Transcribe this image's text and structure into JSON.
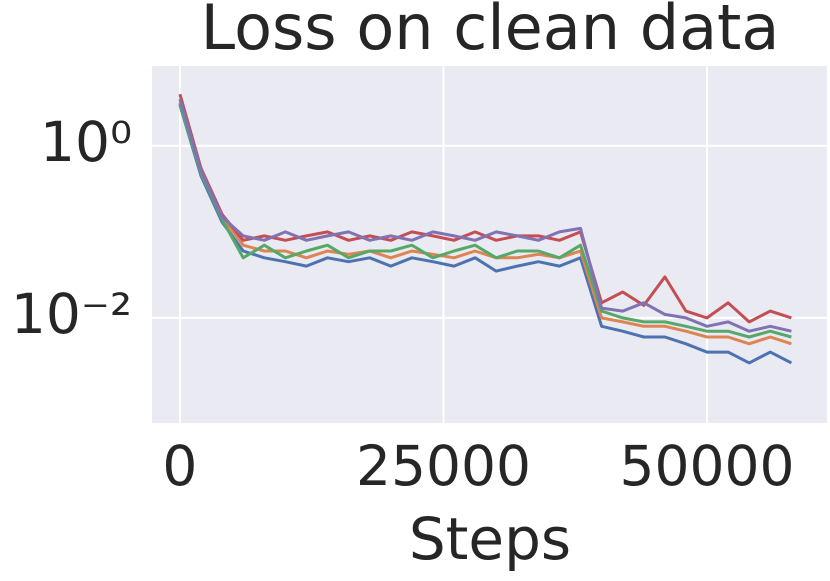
{
  "chart_data": {
    "type": "line",
    "title": "Loss on clean data",
    "x_label": "Steps",
    "x": [
      0,
      2000,
      4000,
      6000,
      8000,
      10000,
      12000,
      14000,
      16000,
      18000,
      20000,
      22000,
      24000,
      26000,
      28000,
      30000,
      32000,
      34000,
      36000,
      38000,
      40000,
      42000,
      44000,
      46000,
      48000,
      50000,
      52000,
      54000,
      56000,
      58000
    ],
    "series": [
      {
        "color": "#4c72b0",
        "values": [
          3.0,
          0.45,
          0.13,
          0.06,
          0.05,
          0.045,
          0.04,
          0.05,
          0.045,
          0.05,
          0.04,
          0.05,
          0.045,
          0.04,
          0.05,
          0.035,
          0.04,
          0.045,
          0.04,
          0.05,
          0.008,
          0.007,
          0.006,
          0.006,
          0.005,
          0.004,
          0.004,
          0.003,
          0.004,
          0.003
        ]
      },
      {
        "color": "#dd8452",
        "values": [
          3.2,
          0.5,
          0.15,
          0.07,
          0.06,
          0.06,
          0.05,
          0.06,
          0.055,
          0.06,
          0.05,
          0.06,
          0.055,
          0.05,
          0.06,
          0.05,
          0.05,
          0.055,
          0.05,
          0.06,
          0.01,
          0.009,
          0.008,
          0.008,
          0.007,
          0.006,
          0.006,
          0.005,
          0.006,
          0.005
        ]
      },
      {
        "color": "#55a868",
        "values": [
          3.1,
          0.48,
          0.14,
          0.05,
          0.07,
          0.05,
          0.06,
          0.07,
          0.05,
          0.06,
          0.06,
          0.07,
          0.05,
          0.06,
          0.07,
          0.05,
          0.06,
          0.06,
          0.05,
          0.07,
          0.012,
          0.01,
          0.009,
          0.009,
          0.008,
          0.007,
          0.007,
          0.006,
          0.007,
          0.006
        ]
      },
      {
        "color": "#c44e52",
        "values": [
          4.0,
          0.55,
          0.16,
          0.08,
          0.09,
          0.08,
          0.09,
          0.1,
          0.08,
          0.09,
          0.08,
          0.1,
          0.09,
          0.08,
          0.1,
          0.08,
          0.09,
          0.09,
          0.08,
          0.1,
          0.015,
          0.02,
          0.014,
          0.03,
          0.012,
          0.01,
          0.015,
          0.009,
          0.012,
          0.01
        ]
      },
      {
        "color": "#8172b3",
        "values": [
          3.5,
          0.52,
          0.15,
          0.09,
          0.08,
          0.1,
          0.08,
          0.09,
          0.1,
          0.08,
          0.09,
          0.08,
          0.1,
          0.09,
          0.08,
          0.1,
          0.09,
          0.08,
          0.1,
          0.11,
          0.013,
          0.012,
          0.015,
          0.011,
          0.01,
          0.008,
          0.009,
          0.007,
          0.008,
          0.007
        ]
      }
    ],
    "xlim": [
      -2650,
      61380
    ],
    "xticks": [
      0,
      25000,
      50000
    ],
    "ylim": [
      0.0006,
      8.5
    ],
    "ylog": true,
    "yticks": [
      {
        "value": 1,
        "label": "10⁰"
      },
      {
        "value": 0.01,
        "label": "10⁻²"
      }
    ],
    "grid": true,
    "background": "#eaeaf2"
  }
}
